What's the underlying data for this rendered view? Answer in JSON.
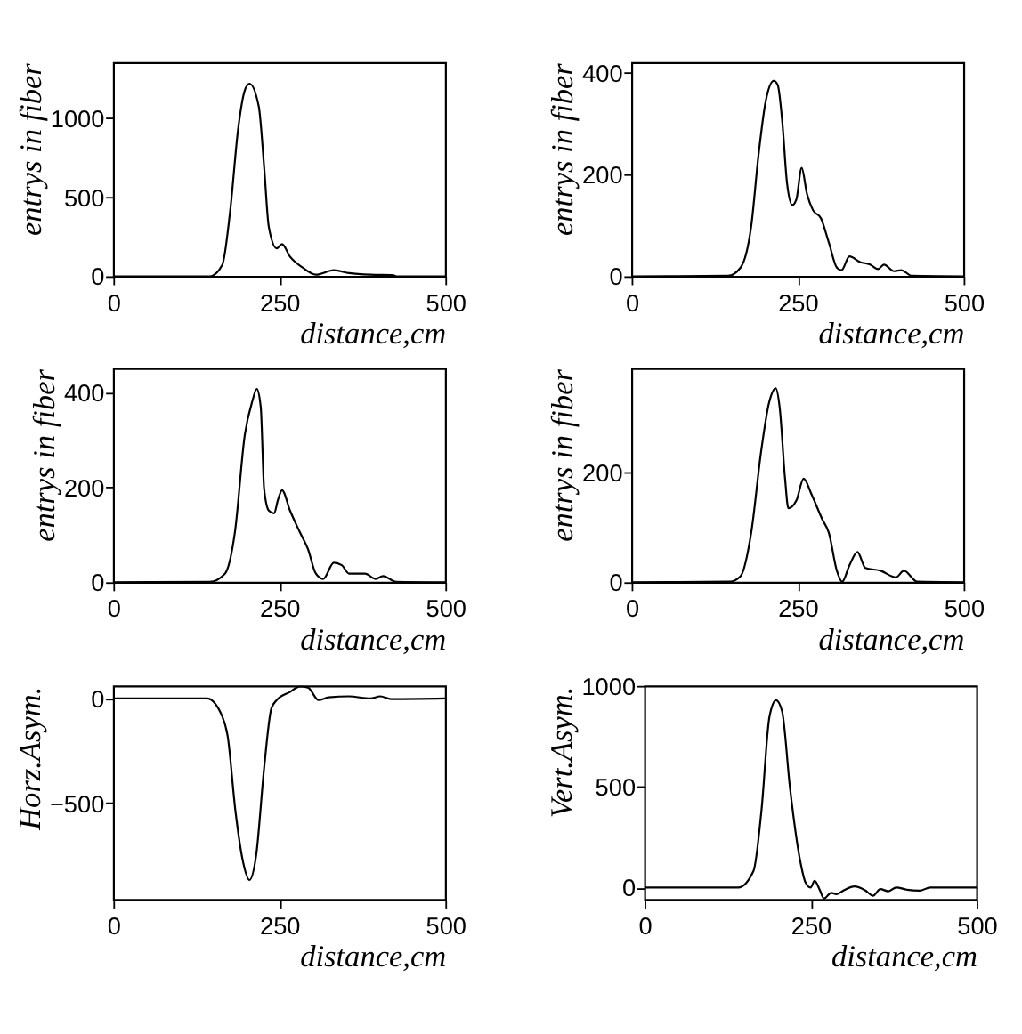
{
  "chart_data": [
    {
      "type": "line",
      "xlabel": "distance,cm",
      "ylabel": "entrys in fiber",
      "xlim": [
        0,
        500
      ],
      "ylim": [
        0,
        1350
      ],
      "xticks": [
        0,
        250,
        500
      ],
      "yticks": [
        0,
        500,
        1000
      ],
      "series": [
        {
          "color": "#000000",
          "x": [
            0,
            145,
            164,
            176,
            188,
            198,
            205,
            219,
            227,
            234,
            246,
            254,
            266,
            285,
            305,
            332,
            355,
            387,
            422,
            426,
            500
          ],
          "values": [
            0,
            0,
            72,
            417,
            934,
            1176,
            1217,
            1072,
            693,
            314,
            176,
            203,
            124,
            55,
            10,
            38,
            20,
            10,
            7,
            0,
            0
          ]
        }
      ]
    },
    {
      "type": "line",
      "xlabel": "distance,cm",
      "ylabel": "entrys in fiber",
      "xlim": [
        0,
        500
      ],
      "ylim": [
        0,
        420
      ],
      "xticks": [
        0,
        250,
        500
      ],
      "yticks": [
        0,
        200,
        400
      ],
      "series": [
        {
          "color": "#000000",
          "x": [
            0,
            145,
            164,
            180,
            191,
            202,
            214,
            220,
            227,
            234,
            242,
            248,
            256,
            264,
            273,
            285,
            297,
            309,
            316,
            328,
            344,
            359,
            371,
            380,
            395,
            406,
            422,
            500
          ],
          "values": [
            0,
            1,
            17,
            98,
            238,
            345,
            384,
            376,
            301,
            183,
            140,
            151,
            213,
            162,
            130,
            114,
            66,
            17,
            12,
            39,
            28,
            23,
            14,
            23,
            10,
            12,
            1,
            0
          ]
        }
      ]
    },
    {
      "type": "line",
      "xlabel": "distance,cm",
      "ylabel": "entrys in fiber",
      "xlim": [
        0,
        500
      ],
      "ylim": [
        0,
        450
      ],
      "xticks": [
        0,
        250,
        500
      ],
      "yticks": [
        0,
        200,
        400
      ],
      "series": [
        {
          "color": "#000000",
          "x": [
            0,
            145,
            168,
            183,
            198,
            209,
            216,
            222,
            227,
            234,
            242,
            248,
            254,
            266,
            281,
            293,
            305,
            316,
            332,
            344,
            355,
            379,
            395,
            406,
            426,
            500
          ],
          "values": [
            0,
            1,
            18,
            105,
            311,
            380,
            407,
            368,
            197,
            151,
            145,
            174,
            194,
            151,
            105,
            70,
            18,
            7,
            41,
            36,
            18,
            18,
            7,
            13,
            1,
            0
          ]
        }
      ]
    },
    {
      "type": "line",
      "xlabel": "distance,cm",
      "ylabel": "entrys in fiber",
      "xlim": [
        0,
        500
      ],
      "ylim": [
        0,
        390
      ],
      "xticks": [
        0,
        250,
        500
      ],
      "yticks": [
        0,
        200
      ],
      "series": [
        {
          "color": "#000000",
          "x": [
            0,
            148,
            164,
            180,
            195,
            207,
            217,
            223,
            231,
            236,
            248,
            259,
            271,
            287,
            297,
            309,
            317,
            328,
            340,
            352,
            375,
            398,
            410,
            430,
            500
          ],
          "values": [
            0,
            1,
            11,
            90,
            239,
            328,
            354,
            318,
            189,
            135,
            149,
            189,
            160,
            115,
            90,
            21,
            1,
            31,
            55,
            26,
            21,
            9,
            21,
            1,
            0
          ]
        }
      ]
    },
    {
      "type": "line",
      "xlabel": "distance,cm",
      "ylabel": "Horz.Asym.",
      "xlim": [
        0,
        500
      ],
      "ylim": [
        -960,
        60
      ],
      "xticks": [
        0,
        250,
        500
      ],
      "yticks": [
        -500,
        0
      ],
      "series": [
        {
          "color": "#000000",
          "x": [
            0,
            141,
            164,
            172,
            184,
            195,
            205,
            215,
            227,
            238,
            246,
            266,
            281,
            293,
            309,
            324,
            355,
            387,
            402,
            418,
            500
          ],
          "values": [
            0,
            0,
            -86,
            -177,
            -542,
            -776,
            -867,
            -750,
            -333,
            -47,
            -8,
            31,
            57,
            52,
            -8,
            5,
            10,
            0,
            10,
            -3,
            0
          ]
        }
      ]
    },
    {
      "type": "line",
      "xlabel": "distance,cm",
      "ylabel": "Vert.Asym.",
      "xlim": [
        0,
        500
      ],
      "ylim": [
        -60,
        1000
      ],
      "xticks": [
        0,
        250,
        500
      ],
      "yticks": [
        0,
        500,
        1000
      ],
      "series": [
        {
          "color": "#000000",
          "x": [
            0,
            141,
            164,
            176,
            188,
            198,
            207,
            219,
            234,
            242,
            250,
            256,
            264,
            270,
            281,
            289,
            300,
            316,
            332,
            344,
            355,
            367,
            379,
            395,
            414,
            430,
            500
          ],
          "values": [
            0,
            0,
            82,
            383,
            847,
            929,
            874,
            492,
            137,
            27,
            0,
            33,
            -14,
            -55,
            -27,
            -33,
            -14,
            5,
            -14,
            -41,
            -8,
            -19,
            0,
            -11,
            -16,
            0,
            0
          ]
        }
      ]
    }
  ]
}
